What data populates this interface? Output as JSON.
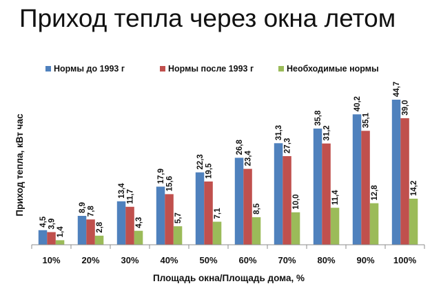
{
  "page": {
    "title": "Приход тепла через окна летом"
  },
  "chart_data": {
    "type": "bar",
    "title": "Приход тепла через окна летом",
    "xlabel": "Площадь окна/Площадь дома, %",
    "ylabel": "Приход тепла, кВт час",
    "categories": [
      "10%",
      "20%",
      "30%",
      "40%",
      "50%",
      "60%",
      "70%",
      "80%",
      "90%",
      "100%"
    ],
    "series": [
      {
        "name": "Нормы до 1993 г",
        "color": "#4f81bd",
        "values": [
          4.5,
          8.9,
          13.4,
          17.9,
          22.3,
          26.8,
          31.3,
          35.8,
          40.2,
          44.7
        ],
        "labels": [
          "4,5",
          "8,9",
          "13,4",
          "17,9",
          "22,3",
          "26,8",
          "31,3",
          "35,8",
          "40,2",
          "44,7"
        ]
      },
      {
        "name": "Нормы после 1993 г",
        "color": "#c0504d",
        "values": [
          3.9,
          7.8,
          11.7,
          15.6,
          19.5,
          23.4,
          27.3,
          31.2,
          35.1,
          39.0
        ],
        "labels": [
          "3,9",
          "7,8",
          "11,7",
          "15,6",
          "19,5",
          "23,4",
          "27,3",
          "31,2",
          "35,1",
          "39,0"
        ]
      },
      {
        "name": "Необходимые нормы",
        "color": "#9bbb59",
        "values": [
          1.4,
          2.8,
          4.3,
          5.7,
          7.1,
          8.5,
          10.0,
          11.4,
          12.8,
          14.2
        ],
        "labels": [
          "1,4",
          "2,8",
          "4,3",
          "5,7",
          "7,1",
          "8,5",
          "10,0",
          "11,4",
          "12,8",
          "14,2"
        ]
      }
    ],
    "ylim": [
      0,
      50
    ],
    "grid": false,
    "legend": "top"
  }
}
